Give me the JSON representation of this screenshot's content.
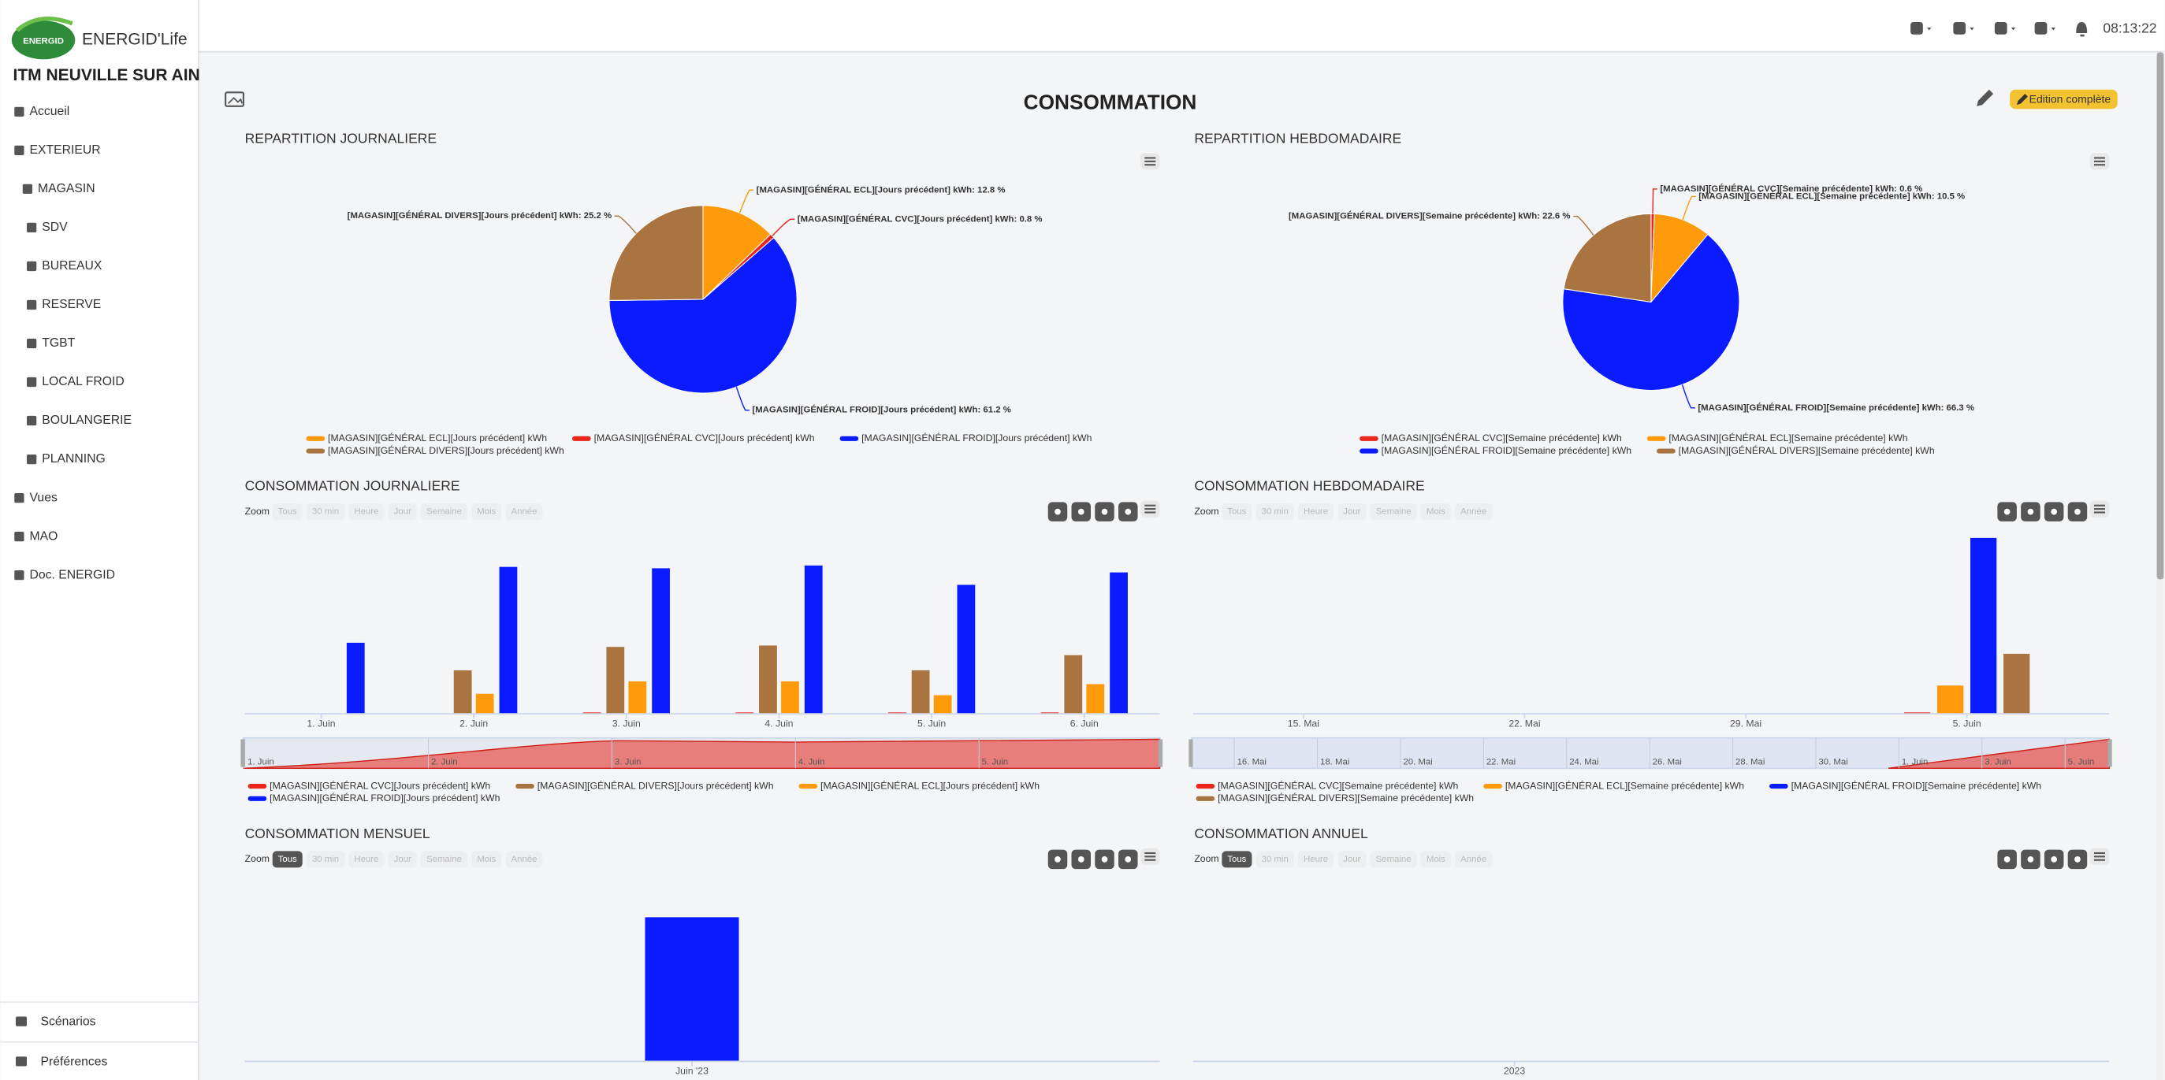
{
  "app": {
    "logo_text": "ENERGID",
    "brand": "ENERGID'Life",
    "site": "ITM NEUVILLE SUR AIN",
    "menu": [
      "Accueil",
      "EXTERIEUR",
      "MAGASIN",
      "SDV",
      "BUREAUX",
      "RESERVE",
      "TGBT",
      "LOCAL FROID",
      "BOULANGERIE",
      "PLANNING",
      "Vues",
      "MAO",
      "Doc. ENERGID"
    ],
    "footer_menu": [
      "Scénarios",
      "Préférences"
    ],
    "time": "08:13:22"
  },
  "page": {
    "title": "CONSOMMATION",
    "edit_button": "Edition complète"
  },
  "chart_data": [
    {
      "type": "pie",
      "title": "REPARTITION JOURNALIERE",
      "categories": [
        "[MAGASIN][GÉNÉRAL ECL][Jours précédent] kWh",
        "[MAGASIN][GÉNÉRAL CVC][Jours précédent] kWh",
        "[MAGASIN][GÉNÉRAL FROID][Jours précédent] kWh",
        "[MAGASIN][GÉNÉRAL DIVERS][Jours précédent] kWh"
      ],
      "values": [
        12.8,
        0.8,
        61.2,
        25.2
      ],
      "value_labels": [
        "[MAGASIN][GÉNÉRAL ECL][Jours précédent] kWh: 12.8 %",
        "[MAGASIN][GÉNÉRAL CVC][Jours précédent] kWh: 0.8 %",
        "[MAGASIN][GÉNÉRAL FROID][Jours précédent] kWh: 61.2 %",
        "[MAGASIN][GÉNÉRAL DIVERS][Jours précédent] kWh: 25.2 %"
      ],
      "colors": [
        "#ff9a0a",
        "#e8261c",
        "#0a1cff",
        "#a9743f"
      ]
    },
    {
      "type": "pie",
      "title": "REPARTITION HEBDOMADAIRE",
      "categories": [
        "[MAGASIN][GÉNÉRAL CVC][Semaine précédente] kWh",
        "[MAGASIN][GÉNÉRAL ECL][Semaine précédente] kWh",
        "[MAGASIN][GÉNÉRAL FROID][Semaine précédente] kWh",
        "[MAGASIN][GÉNÉRAL DIVERS][Semaine précédente] kWh"
      ],
      "values": [
        0.6,
        10.5,
        66.3,
        22.6
      ],
      "value_labels": [
        "[MAGASIN][GÉNÉRAL CVC][Semaine précédente] kWh: 0.6 %",
        "[MAGASIN][GÉNÉRAL ECL][Semaine précédente] kWh: 10.5 %",
        "[MAGASIN][GÉNÉRAL FROID][Semaine précédente] kWh: 66.3 %",
        "[MAGASIN][GÉNÉRAL DIVERS][Semaine précédente] kWh: 22.6 %"
      ],
      "colors": [
        "#e8261c",
        "#ff9a0a",
        "#0a1cff",
        "#a9743f"
      ]
    },
    {
      "type": "bar",
      "title": "CONSOMMATION JOURNALIERE",
      "zoom_label": "Zoom",
      "zoom_buttons": [
        "Tous",
        "30 min",
        "Heure",
        "Jour",
        "Semaine",
        "Mois",
        "Année"
      ],
      "categories": [
        "1. Juin",
        "2. Juin",
        "3. Juin",
        "4. Juin",
        "5. Juin",
        "6. Juin"
      ],
      "series": [
        {
          "name": "[MAGASIN][GÉNÉRAL CVC][Jours précédent] kWh",
          "color": "#e8261c",
          "values": [
            null,
            null,
            0.5,
            0.5,
            0.5,
            0.5
          ]
        },
        {
          "name": "[MAGASIN][GÉNÉRAL DIVERS][Jours précédent] kWh",
          "color": "#a9743f",
          "values": [
            null,
            31,
            48,
            49,
            31,
            42
          ]
        },
        {
          "name": "[MAGASIN][GÉNÉRAL ECL][Jours précédent] kWh",
          "color": "#ff9a0a",
          "values": [
            null,
            14,
            23,
            23,
            13,
            21
          ]
        },
        {
          "name": "[MAGASIN][GÉNÉRAL FROID][Jours précédent] kWh",
          "color": "#0a1cff",
          "values": [
            51,
            106,
            105,
            107,
            93,
            102
          ]
        }
      ],
      "ylim": [
        0,
        130
      ]
    },
    {
      "type": "bar",
      "title": "CONSOMMATION HEBDOMADAIRE",
      "zoom_label": "Zoom",
      "zoom_buttons": [
        "Tous",
        "30 min",
        "Heure",
        "Jour",
        "Semaine",
        "Mois",
        "Année"
      ],
      "categories": [
        "15. Mai",
        "22. Mai",
        "29. Mai",
        "5. Juin"
      ],
      "navigator_labels": [
        "16. Mai",
        "18. Mai",
        "20. Mai",
        "22. Mai",
        "24. Mai",
        "26. Mai",
        "28. Mai",
        "30. Mai",
        "1. Juin",
        "3. Juin",
        "5. Juin"
      ],
      "series": [
        {
          "name": "[MAGASIN][GÉNÉRAL CVC][Semaine précédente] kWh",
          "color": "#e8261c",
          "values": [
            null,
            null,
            null,
            0.5
          ]
        },
        {
          "name": "[MAGASIN][GÉNÉRAL ECL][Semaine précédente] kWh",
          "color": "#ff9a0a",
          "values": [
            null,
            null,
            null,
            20
          ]
        },
        {
          "name": "[MAGASIN][GÉNÉRAL FROID][Semaine précédente] kWh",
          "color": "#0a1cff",
          "values": [
            null,
            null,
            null,
            127
          ]
        },
        {
          "name": "[MAGASIN][GÉNÉRAL DIVERS][Semaine précédente] kWh",
          "color": "#a9743f",
          "values": [
            null,
            null,
            null,
            43
          ]
        }
      ],
      "ylim": [
        0,
        130
      ]
    },
    {
      "type": "bar",
      "title": "CONSOMMATION MENSUEL",
      "zoom_label": "Zoom",
      "zoom_buttons": [
        "Tous",
        "30 min",
        "Heure",
        "Jour",
        "Semaine",
        "Mois",
        "Année"
      ],
      "zoom_selected": 0,
      "categories": [
        "Juin '23"
      ],
      "values": [
        104
      ],
      "color": "#0a1cff",
      "ylim": [
        0,
        120
      ]
    },
    {
      "type": "bar",
      "title": "CONSOMMATION ANNUEL",
      "zoom_label": "Zoom",
      "zoom_buttons": [
        "Tous",
        "30 min",
        "Heure",
        "Jour",
        "Semaine",
        "Mois",
        "Année"
      ],
      "zoom_selected": 0,
      "categories": [
        "2023"
      ],
      "values": [
        null
      ],
      "ylim": [
        0,
        120
      ]
    }
  ]
}
